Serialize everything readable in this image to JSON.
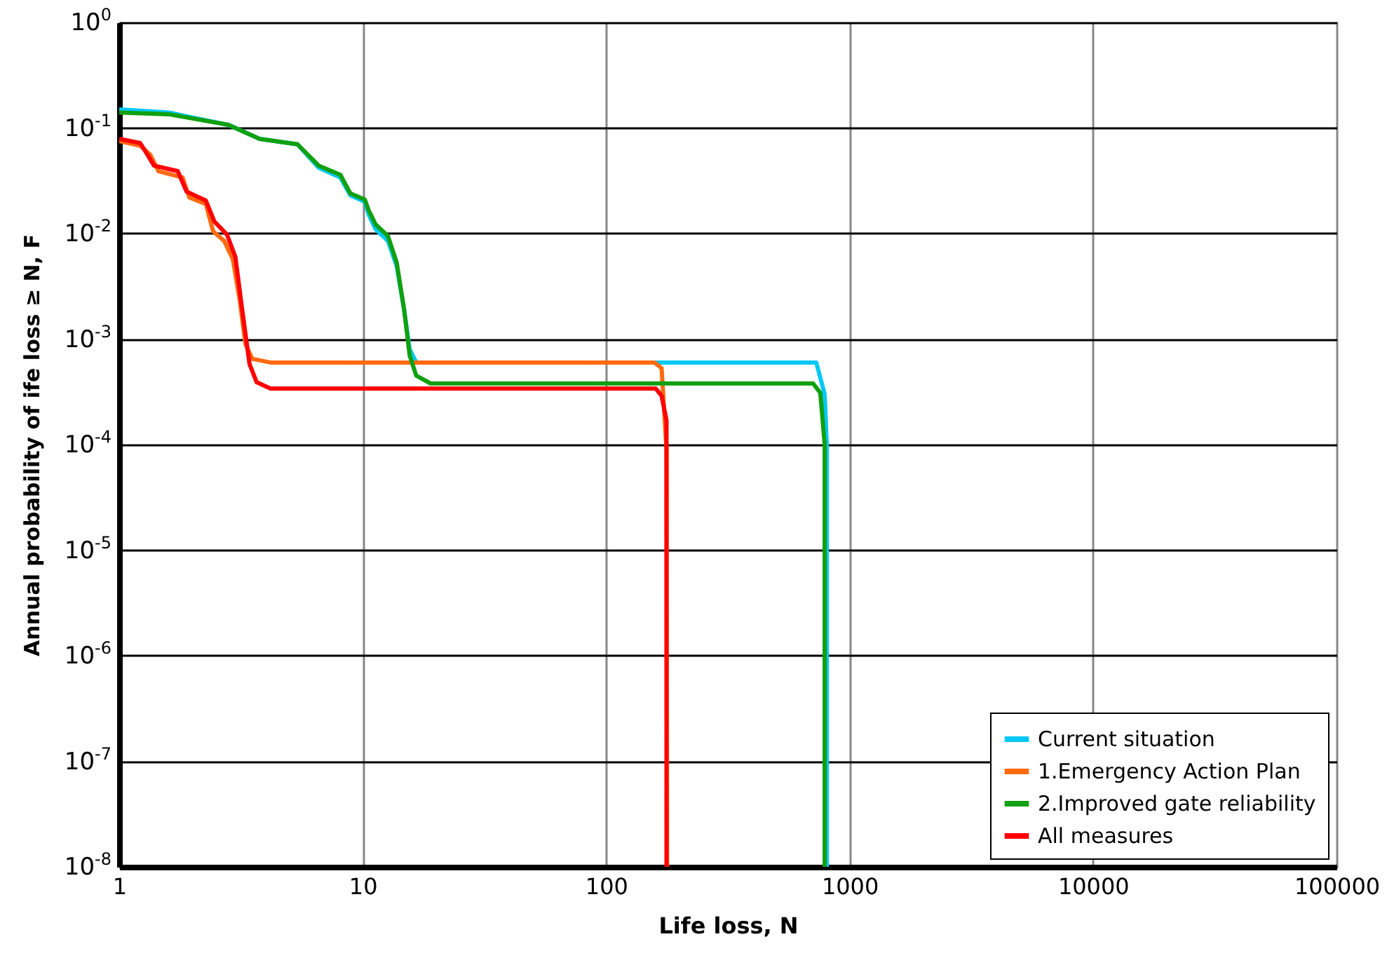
{
  "chart_data": {
    "type": "line",
    "xlabel": "Life loss, N",
    "ylabel": "Annual probability of ife loss ≥ N, F",
    "log": "xy",
    "grid": true,
    "legend": "bottom right",
    "xlim": [
      1,
      100000
    ],
    "ylim": [
      1e-08,
      1
    ],
    "xticks": [
      1,
      10,
      100,
      1000,
      10000,
      100000
    ],
    "yticks": [
      {
        "value": 1e-08,
        "label": "10$^{-8}$"
      },
      {
        "value": 1e-07,
        "label": "10$^{-7}$"
      },
      {
        "value": 1e-06,
        "label": "10$^{-6}$"
      },
      {
        "value": 1e-05,
        "label": "10$^{-5}$"
      },
      {
        "value": 0.0001,
        "label": "10$^{-4}$"
      },
      {
        "value": 0.001,
        "label": "10$^{-3}$"
      },
      {
        "value": 0.01,
        "label": "10$^{-2}$"
      },
      {
        "value": 0.1,
        "label": "10$^{-1}$"
      },
      {
        "value": 1,
        "label": "10$^{0}$"
      }
    ],
    "series": [
      {
        "name": "Current situation",
        "color": "#00c8f5",
        "x": [
          1,
          1.6,
          2.81,
          3.77,
          5.4,
          6.6,
          8.1,
          8.9,
          10.2,
          10.6,
          11.3,
          12.7,
          13.8,
          14.8,
          15.6,
          16.6,
          730,
          790,
          806,
          806
        ],
        "values": [
          0.15,
          0.14,
          0.107,
          0.079,
          0.07,
          0.042,
          0.034,
          0.023,
          0.02,
          0.015,
          0.011,
          0.0085,
          0.0049,
          0.0019,
          0.0008,
          0.0006,
          0.0006,
          0.0003,
          0.0001,
          1e-08
        ]
      },
      {
        "name": "1.Emergency Action Plan",
        "color": "#ff6a10",
        "x": [
          1,
          1.22,
          1.34,
          1.45,
          1.82,
          1.94,
          2.27,
          2.43,
          2.7,
          2.93,
          3.13,
          3.3,
          3.52,
          4.18,
          158,
          169,
          177,
          178
        ],
        "values": [
          0.075,
          0.068,
          0.056,
          0.039,
          0.034,
          0.022,
          0.019,
          0.0105,
          0.0085,
          0.0057,
          0.0023,
          0.0009,
          0.00065,
          0.0006,
          0.0006,
          0.00053,
          9e-05,
          1e-08
        ]
      },
      {
        "name": "2.Improved gate reliability",
        "color": "#10a010",
        "x": [
          1,
          1.6,
          2.81,
          3.77,
          5.4,
          6.6,
          8.1,
          8.9,
          10.2,
          10.6,
          11.3,
          12.7,
          13.8,
          14.8,
          15.6,
          16.6,
          19,
          708,
          758,
          790,
          790
        ],
        "values": [
          0.14,
          0.135,
          0.107,
          0.079,
          0.07,
          0.044,
          0.036,
          0.024,
          0.021,
          0.0165,
          0.0122,
          0.0095,
          0.0053,
          0.0019,
          0.0007,
          0.00045,
          0.00038,
          0.00038,
          0.00031,
          0.0001,
          1e-08
        ]
      },
      {
        "name": "All measures",
        "color": "#ff0000",
        "x": [
          1,
          1.22,
          1.27,
          1.39,
          1.74,
          1.89,
          2.27,
          2.46,
          2.77,
          3.0,
          3.2,
          3.43,
          3.67,
          4.18,
          160,
          169,
          177,
          177
        ],
        "values": [
          0.079,
          0.072,
          0.062,
          0.044,
          0.039,
          0.025,
          0.0205,
          0.013,
          0.0098,
          0.006,
          0.0019,
          0.00058,
          0.00039,
          0.00034,
          0.00034,
          0.00029,
          0.00017,
          1e-08
        ]
      }
    ]
  }
}
